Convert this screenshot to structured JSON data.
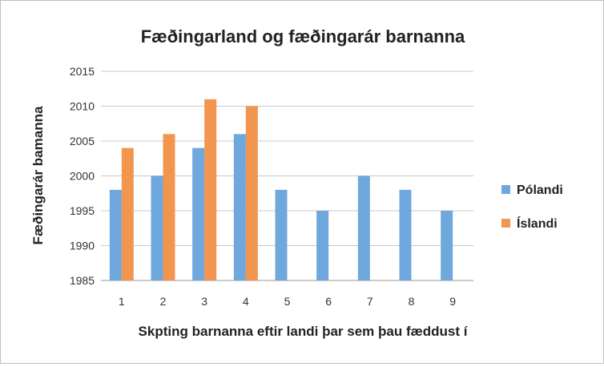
{
  "chart_data": {
    "type": "bar",
    "title": "Fæðingarland og fæðingarár barnanna",
    "xlabel": "Skpting barnanna eftir landi þar sem þau fæddust í",
    "ylabel": "Fæðingarár bamanna",
    "categories": [
      "1",
      "2",
      "3",
      "4",
      "5",
      "6",
      "7",
      "8",
      "9"
    ],
    "ylim": [
      1985,
      2015
    ],
    "yticks": [
      1985,
      1990,
      1995,
      2000,
      2005,
      2010,
      2015
    ],
    "grid": true,
    "legend_position": "right",
    "series": [
      {
        "name": "Pólandi",
        "color": "#6FA8DC",
        "values": [
          1998,
          2000,
          2004,
          2006,
          1998,
          1995,
          2000,
          1998,
          1995
        ]
      },
      {
        "name": "Íslandi",
        "color": "#F2954F",
        "values": [
          2004,
          2006,
          2011,
          2010,
          null,
          null,
          null,
          null,
          null
        ]
      }
    ]
  }
}
